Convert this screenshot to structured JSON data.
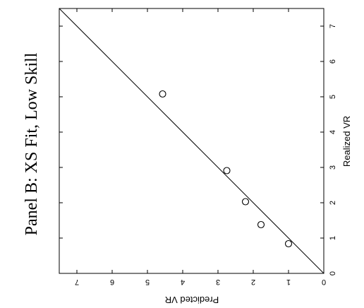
{
  "chart_data": {
    "type": "scatter",
    "title": "Panel B: XS Fit, Low Skill",
    "xlabel": "Realized VR",
    "ylabel": "Predicted VR",
    "xlim": [
      0,
      7.5
    ],
    "ylim": [
      0,
      7.5
    ],
    "x_ticks": [
      0,
      1,
      2,
      3,
      4,
      5,
      6,
      7
    ],
    "y_ticks": [
      0,
      1,
      2,
      3,
      4,
      5,
      6,
      7
    ],
    "reference_line": "45-degree line y = x",
    "points": [
      {
        "x": 0.84,
        "y": 1.0
      },
      {
        "x": 1.38,
        "y": 1.78
      },
      {
        "x": 2.03,
        "y": 2.22
      },
      {
        "x": 2.91,
        "y": 2.75
      },
      {
        "x": 5.08,
        "y": 4.57
      }
    ],
    "grid": false,
    "rotation": "rotated 90 degrees counter-clockwise"
  }
}
